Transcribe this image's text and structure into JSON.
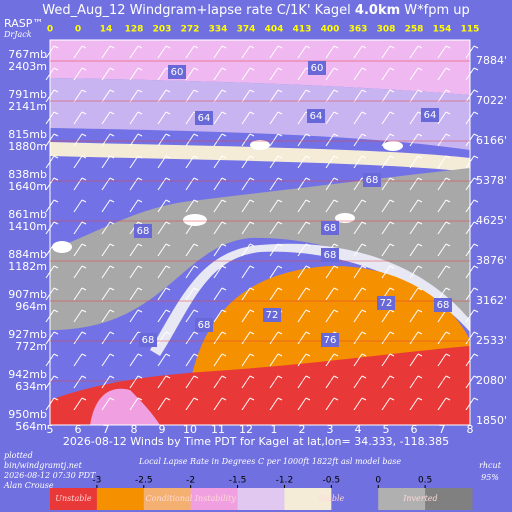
{
  "chart_data": {
    "type": "windgram",
    "title_parts": [
      "Wed_Aug_12 Windgram+lapse rate C/1K'  Kagel ",
      "4.0km",
      "  W*fpm up"
    ],
    "brand": [
      "RASP™",
      "DrJack"
    ],
    "categories": [
      "5",
      "6",
      "7",
      "8",
      "9",
      "10",
      "11",
      "12",
      "1",
      "2",
      "3",
      "4",
      "5",
      "6",
      "7",
      "8"
    ],
    "wstar": [
      0,
      0,
      14,
      128,
      203,
      272,
      334,
      374,
      404,
      413,
      400,
      363,
      308,
      258,
      154,
      115
    ],
    "pressure_levels": [
      "767mb",
      "791mb",
      "815mb",
      "838mb",
      "861mb",
      "884mb",
      "907mb",
      "927mb",
      "942mb",
      "950mb"
    ],
    "height_m": [
      "2403m",
      "2141m",
      "1880m",
      "1640m",
      "1410m",
      "1182m",
      "964m",
      "772m",
      "634m",
      "564m"
    ],
    "height_ft": [
      "7884'",
      "7022'",
      "6166'",
      "5378'",
      "4625'",
      "3876'",
      "3162'",
      "2533'",
      "2080'",
      "1850'"
    ],
    "contour_labels": [
      60,
      60,
      64,
      64,
      64,
      68,
      68,
      68,
      68,
      68,
      72,
      72,
      76,
      68,
      68
    ],
    "x_label": "2026-08-12 Winds by Time PDT for Kagel at lat,lon= 34.333, -118.385",
    "footer_left": [
      "plotted",
      "bin/windgramtj.net",
      "2026-08-12 07:30 PDT",
      "Alan Crouse"
    ],
    "colorbar_title": "Local Lapse Rate in Degrees C per 1000ft   1822ft asl model base",
    "footer_right": [
      "rhcut",
      "95%"
    ],
    "colorbar_ticks": [
      -3,
      -2.5,
      -2,
      -1.5,
      -1.2,
      -0.5,
      0,
      0.5
    ],
    "colorbar_colors": [
      "#e83838",
      "#f59000",
      "#f4b070",
      "#f0a0e0",
      "#e0c8f0",
      "#f5ecd8",
      "#7070e0",
      "#b0b0b0",
      "#808080"
    ],
    "colorbar_classes": [
      "Unstable",
      "Conditional Instability",
      "Stable",
      "Inverted"
    ]
  }
}
